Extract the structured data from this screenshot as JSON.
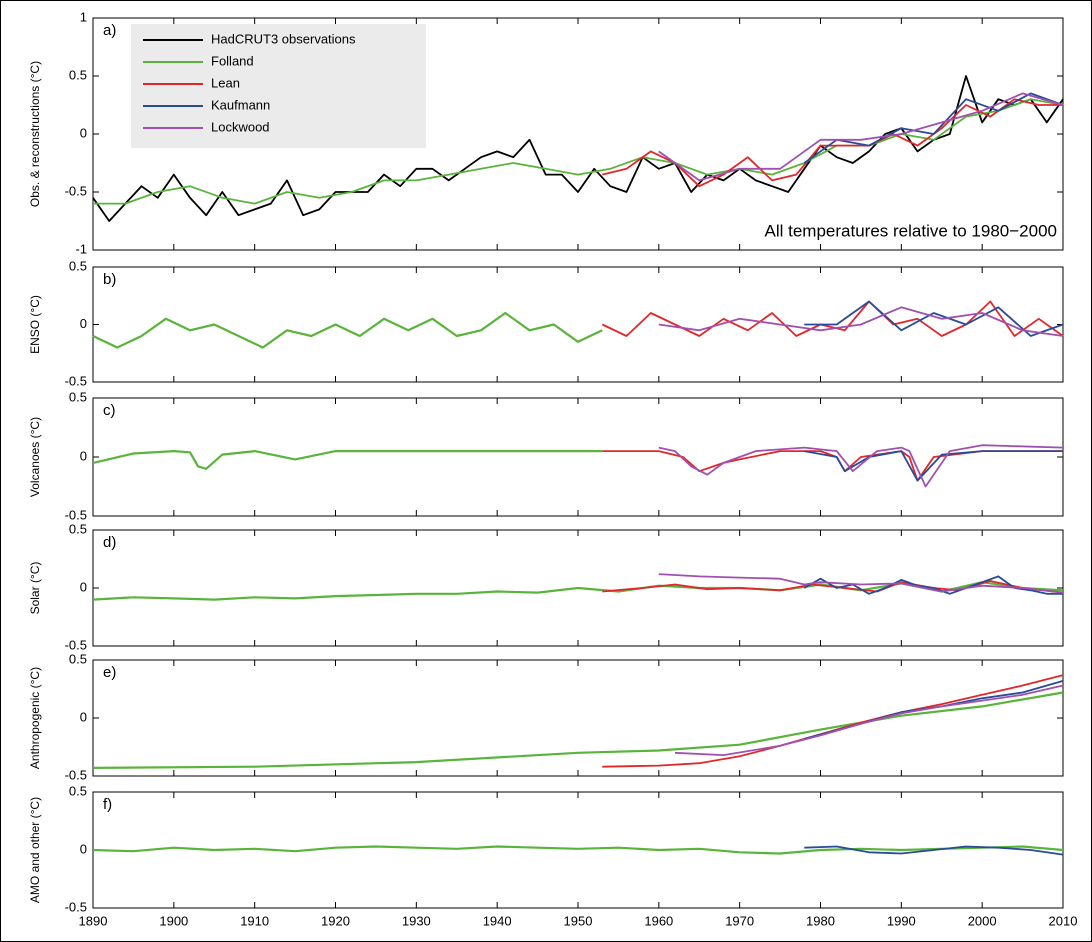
{
  "chart_data": [
    {
      "type": "line",
      "panel_label": "a)",
      "ylabel": "Obs. & reconstructions (°C)",
      "annotation": "All temperatures relative to 1980−2000",
      "xlim": [
        1890,
        2010
      ],
      "ylim": [
        -1,
        1
      ],
      "yticks": [
        -1,
        -0.5,
        0,
        0.5,
        1
      ],
      "legend": "upper left",
      "series": [
        {
          "name": "HadCRUT3 observations",
          "color": "#000000",
          "x": [
            1890,
            1892,
            1894,
            1896,
            1898,
            1900,
            1902,
            1904,
            1906,
            1908,
            1910,
            1912,
            1914,
            1916,
            1918,
            1920,
            1922,
            1924,
            1926,
            1928,
            1930,
            1932,
            1934,
            1936,
            1938,
            1940,
            1942,
            1944,
            1946,
            1948,
            1950,
            1952,
            1954,
            1956,
            1958,
            1960,
            1962,
            1964,
            1966,
            1968,
            1970,
            1972,
            1974,
            1976,
            1978,
            1980,
            1982,
            1984,
            1986,
            1988,
            1990,
            1992,
            1994,
            1996,
            1998,
            2000,
            2002,
            2004,
            2006,
            2008,
            2010
          ],
          "values": [
            -0.55,
            -0.75,
            -0.6,
            -0.45,
            -0.55,
            -0.35,
            -0.55,
            -0.7,
            -0.5,
            -0.7,
            -0.65,
            -0.6,
            -0.4,
            -0.7,
            -0.65,
            -0.5,
            -0.5,
            -0.5,
            -0.35,
            -0.45,
            -0.3,
            -0.3,
            -0.4,
            -0.3,
            -0.2,
            -0.15,
            -0.2,
            -0.05,
            -0.35,
            -0.35,
            -0.5,
            -0.3,
            -0.45,
            -0.5,
            -0.2,
            -0.3,
            -0.25,
            -0.5,
            -0.35,
            -0.4,
            -0.3,
            -0.4,
            -0.45,
            -0.5,
            -0.3,
            -0.1,
            -0.2,
            -0.25,
            -0.15,
            0.0,
            0.05,
            -0.15,
            -0.05,
            0.0,
            0.5,
            0.1,
            0.3,
            0.25,
            0.3,
            0.1,
            0.3
          ]
        },
        {
          "name": "Folland",
          "color": "#5ab43c",
          "x": [
            1890,
            1894,
            1898,
            1902,
            1906,
            1910,
            1914,
            1918,
            1922,
            1926,
            1930,
            1934,
            1938,
            1942,
            1946,
            1950,
            1954,
            1958,
            1962,
            1966,
            1970,
            1974,
            1978,
            1982,
            1986,
            1990,
            1994,
            1998,
            2002,
            2006,
            2010
          ],
          "values": [
            -0.6,
            -0.6,
            -0.5,
            -0.45,
            -0.55,
            -0.6,
            -0.5,
            -0.55,
            -0.5,
            -0.4,
            -0.4,
            -0.35,
            -0.3,
            -0.25,
            -0.3,
            -0.35,
            -0.3,
            -0.2,
            -0.25,
            -0.35,
            -0.3,
            -0.35,
            -0.25,
            -0.1,
            -0.1,
            0.0,
            -0.05,
            0.15,
            0.2,
            0.3,
            0.25
          ]
        },
        {
          "name": "Lean",
          "color": "#e3262a",
          "x": [
            1953,
            1956,
            1959,
            1962,
            1965,
            1968,
            1971,
            1974,
            1977,
            1980,
            1983,
            1986,
            1989,
            1992,
            1995,
            1998,
            2001,
            2004,
            2007,
            2010
          ],
          "values": [
            -0.35,
            -0.3,
            -0.15,
            -0.25,
            -0.45,
            -0.35,
            -0.2,
            -0.4,
            -0.35,
            -0.1,
            -0.1,
            -0.1,
            0.0,
            -0.1,
            0.05,
            0.25,
            0.15,
            0.3,
            0.25,
            0.25
          ]
        },
        {
          "name": "Kaufmann",
          "color": "#2a4a9a",
          "x": [
            1978,
            1982,
            1986,
            1990,
            1994,
            1998,
            2002,
            2006,
            2010
          ],
          "values": [
            -0.25,
            -0.05,
            -0.1,
            0.05,
            0.0,
            0.3,
            0.2,
            0.35,
            0.25
          ]
        },
        {
          "name": "Lockwood",
          "color": "#a050b0",
          "x": [
            1960,
            1965,
            1970,
            1975,
            1980,
            1985,
            1990,
            1995,
            2000,
            2005,
            2010
          ],
          "values": [
            -0.15,
            -0.4,
            -0.3,
            -0.3,
            -0.05,
            -0.05,
            0.0,
            0.1,
            0.2,
            0.35,
            0.25
          ]
        }
      ]
    },
    {
      "type": "line",
      "panel_label": "b)",
      "ylabel": "ENSO (°C)",
      "xlim": [
        1890,
        2010
      ],
      "ylim": [
        -0.5,
        0.5
      ],
      "yticks": [
        -0.5,
        0,
        0.5
      ],
      "series": [
        {
          "color": "#5ab43c",
          "x": [
            1890,
            1893,
            1896,
            1899,
            1902,
            1905,
            1908,
            1911,
            1914,
            1917,
            1920,
            1923,
            1926,
            1929,
            1932,
            1935,
            1938,
            1941,
            1944,
            1947,
            1950,
            1953
          ],
          "values": [
            -0.1,
            -0.2,
            -0.1,
            0.05,
            -0.05,
            0.0,
            -0.1,
            -0.2,
            -0.05,
            -0.1,
            0.0,
            -0.1,
            0.05,
            -0.05,
            0.05,
            -0.1,
            -0.05,
            0.1,
            -0.05,
            0.0,
            -0.15,
            -0.05
          ]
        },
        {
          "color": "#e3262a",
          "x": [
            1953,
            1956,
            1959,
            1962,
            1965,
            1968,
            1971,
            1974,
            1977,
            1980,
            1983,
            1986,
            1989,
            1992,
            1995,
            1998,
            2001,
            2004,
            2007,
            2010
          ],
          "values": [
            0.0,
            -0.1,
            0.1,
            0.0,
            -0.1,
            0.05,
            -0.05,
            0.1,
            -0.1,
            0.0,
            -0.05,
            0.2,
            0.0,
            0.05,
            -0.1,
            0.0,
            0.2,
            -0.1,
            0.05,
            -0.1
          ]
        },
        {
          "color": "#2a4a9a",
          "x": [
            1978,
            1982,
            1986,
            1990,
            1994,
            1998,
            2002,
            2006,
            2010
          ],
          "values": [
            0.0,
            0.0,
            0.2,
            -0.05,
            0.1,
            0.0,
            0.15,
            -0.1,
            0.0
          ]
        },
        {
          "color": "#a050b0",
          "x": [
            1960,
            1965,
            1970,
            1975,
            1980,
            1985,
            1990,
            1995,
            2000,
            2005,
            2010
          ],
          "values": [
            0.0,
            -0.05,
            0.05,
            0.0,
            -0.05,
            0.0,
            0.15,
            0.05,
            0.1,
            -0.05,
            -0.1
          ]
        }
      ]
    },
    {
      "type": "line",
      "panel_label": "c)",
      "ylabel": "Volcanoes (°C)",
      "xlim": [
        1890,
        2010
      ],
      "ylim": [
        -0.5,
        0.5
      ],
      "yticks": [
        -0.5,
        0,
        0.5
      ],
      "series": [
        {
          "color": "#5ab43c",
          "x": [
            1890,
            1895,
            1900,
            1902,
            1903,
            1904,
            1906,
            1910,
            1915,
            1920,
            1930,
            1940,
            1953
          ],
          "values": [
            -0.05,
            0.03,
            0.05,
            0.04,
            -0.08,
            -0.1,
            0.02,
            0.05,
            -0.02,
            0.05,
            0.05,
            0.05,
            0.05
          ]
        },
        {
          "color": "#e3262a",
          "x": [
            1953,
            1960,
            1963,
            1965,
            1968,
            1970,
            1975,
            1980,
            1982,
            1983,
            1985,
            1990,
            1991,
            1992,
            1994,
            2000,
            2010
          ],
          "values": [
            0.05,
            0.05,
            0.0,
            -0.12,
            -0.05,
            -0.02,
            0.05,
            0.05,
            0.0,
            -0.12,
            0.0,
            0.05,
            0.0,
            -0.2,
            0.0,
            0.05,
            0.05
          ]
        },
        {
          "color": "#2a4a9a",
          "x": [
            1978,
            1982,
            1983,
            1986,
            1990,
            1992,
            1995,
            2000,
            2010
          ],
          "values": [
            0.05,
            0.0,
            -0.12,
            0.0,
            0.05,
            -0.2,
            0.02,
            0.05,
            0.05
          ]
        },
        {
          "color": "#a050b0",
          "x": [
            1960,
            1962,
            1964,
            1966,
            1968,
            1972,
            1978,
            1982,
            1984,
            1987,
            1990,
            1991,
            1993,
            1996,
            2000,
            2010
          ],
          "values": [
            0.08,
            0.05,
            -0.08,
            -0.15,
            -0.05,
            0.05,
            0.08,
            0.05,
            -0.12,
            0.05,
            0.08,
            0.05,
            -0.25,
            0.05,
            0.1,
            0.08
          ]
        }
      ]
    },
    {
      "type": "line",
      "panel_label": "d)",
      "ylabel": "Solar (°C)",
      "xlim": [
        1890,
        2010
      ],
      "ylim": [
        -0.5,
        0.5
      ],
      "yticks": [
        -0.5,
        0,
        0.5
      ],
      "series": [
        {
          "color": "#5ab43c",
          "x": [
            1890,
            1895,
            1900,
            1905,
            1910,
            1915,
            1920,
            1925,
            1930,
            1935,
            1940,
            1945,
            1950,
            1955,
            1960,
            1965,
            1970,
            1975,
            1980,
            1985,
            1990,
            1995,
            2000,
            2005,
            2010
          ],
          "values": [
            -0.1,
            -0.08,
            -0.09,
            -0.1,
            -0.08,
            -0.09,
            -0.07,
            -0.06,
            -0.05,
            -0.05,
            -0.03,
            -0.04,
            0.0,
            -0.03,
            0.02,
            0.0,
            0.0,
            -0.02,
            0.03,
            -0.02,
            0.04,
            -0.03,
            0.05,
            0.0,
            -0.02
          ]
        },
        {
          "color": "#e3262a",
          "x": [
            1953,
            1958,
            1962,
            1966,
            1970,
            1975,
            1979,
            1983,
            1987,
            1990,
            1994,
            1997,
            2001,
            2005,
            2010
          ],
          "values": [
            -0.03,
            0.0,
            0.03,
            -0.01,
            0.0,
            -0.02,
            0.03,
            0.0,
            -0.03,
            0.05,
            0.0,
            -0.02,
            0.06,
            0.0,
            -0.04
          ]
        },
        {
          "color": "#2a4a9a",
          "x": [
            1978,
            1980,
            1982,
            1984,
            1986,
            1988,
            1990,
            1992,
            1994,
            1996,
            1998,
            2000,
            2002,
            2004,
            2006,
            2008,
            2010
          ],
          "values": [
            0.0,
            0.08,
            0.0,
            0.03,
            -0.05,
            0.0,
            0.07,
            0.02,
            0.0,
            -0.05,
            0.0,
            0.05,
            0.1,
            0.0,
            -0.02,
            -0.05,
            -0.05
          ]
        },
        {
          "color": "#a050b0",
          "x": [
            1960,
            1965,
            1970,
            1975,
            1978,
            1980,
            1985,
            1990,
            1995,
            2000,
            2005,
            2010
          ],
          "values": [
            0.12,
            0.1,
            0.09,
            0.08,
            0.03,
            0.05,
            0.03,
            0.04,
            -0.03,
            0.02,
            0.0,
            -0.04
          ]
        }
      ]
    },
    {
      "type": "line",
      "panel_label": "e)",
      "ylabel": "Anthropogenic (°C)",
      "xlim": [
        1890,
        2010
      ],
      "ylim": [
        -0.5,
        0.5
      ],
      "yticks": [
        -0.5,
        0,
        0.5
      ],
      "series": [
        {
          "color": "#5ab43c",
          "x": [
            1890,
            1910,
            1930,
            1950,
            1960,
            1970,
            1980,
            1990,
            2000,
            2010
          ],
          "values": [
            -0.43,
            -0.42,
            -0.38,
            -0.3,
            -0.28,
            -0.23,
            -0.1,
            0.02,
            0.1,
            0.22
          ]
        },
        {
          "color": "#e3262a",
          "x": [
            1953,
            1960,
            1965,
            1970,
            1975,
            1980,
            1985,
            1990,
            1995,
            2000,
            2005,
            2010
          ],
          "values": [
            -0.42,
            -0.41,
            -0.39,
            -0.33,
            -0.24,
            -0.14,
            -0.04,
            0.05,
            0.12,
            0.2,
            0.28,
            0.37
          ]
        },
        {
          "color": "#2a4a9a",
          "x": [
            1978,
            1985,
            1990,
            1995,
            2000,
            2005,
            2010
          ],
          "values": [
            -0.18,
            -0.05,
            0.05,
            0.1,
            0.17,
            0.22,
            0.32
          ]
        },
        {
          "color": "#a050b0",
          "x": [
            1962,
            1968,
            1975,
            1980,
            1985,
            1990,
            1995,
            2000,
            2005,
            2010
          ],
          "values": [
            -0.3,
            -0.32,
            -0.24,
            -0.15,
            -0.05,
            0.04,
            0.1,
            0.15,
            0.2,
            0.28
          ]
        }
      ]
    },
    {
      "type": "line",
      "panel_label": "f)",
      "ylabel": "AMO and other (°C)",
      "xlim": [
        1890,
        2010
      ],
      "ylim": [
        -0.5,
        0.5
      ],
      "yticks": [
        -0.5,
        0,
        0.5
      ],
      "xticks": [
        1890,
        1900,
        1910,
        1920,
        1930,
        1940,
        1950,
        1960,
        1970,
        1980,
        1990,
        2000,
        2010
      ],
      "series": [
        {
          "color": "#5ab43c",
          "x": [
            1890,
            1895,
            1900,
            1905,
            1910,
            1915,
            1920,
            1925,
            1930,
            1935,
            1940,
            1945,
            1950,
            1955,
            1960,
            1965,
            1970,
            1975,
            1980,
            1985,
            1990,
            1995,
            2000,
            2005,
            2010
          ],
          "values": [
            0.0,
            -0.01,
            0.02,
            0.0,
            0.01,
            -0.01,
            0.02,
            0.03,
            0.02,
            0.01,
            0.03,
            0.02,
            0.01,
            0.02,
            0.0,
            0.01,
            -0.02,
            -0.03,
            0.0,
            0.01,
            0.0,
            0.01,
            0.02,
            0.03,
            0.0
          ]
        },
        {
          "color": "#2a4a9a",
          "x": [
            1978,
            1982,
            1986,
            1990,
            1994,
            1998,
            2002,
            2006,
            2010
          ],
          "values": [
            0.02,
            0.03,
            -0.02,
            -0.03,
            0.0,
            0.03,
            0.02,
            0.0,
            -0.04
          ]
        }
      ]
    }
  ]
}
